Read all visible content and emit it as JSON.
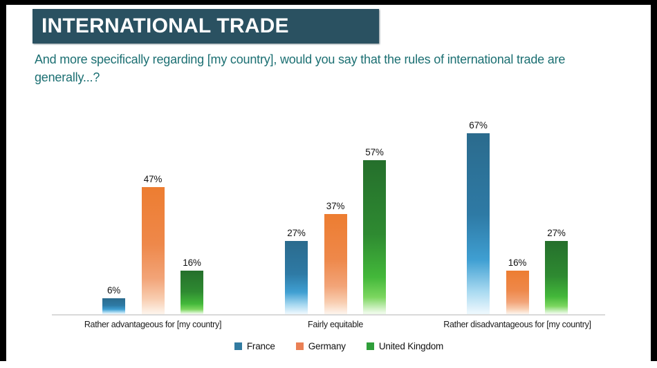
{
  "frame": {
    "color": "#000000"
  },
  "header": {
    "title": "INTERNATIONAL TRADE",
    "bg_color": "#2a5161",
    "text_color": "#ffffff"
  },
  "subtitle": {
    "text": "And more specifically regarding [my country], would you say that the rules of international trade are generally...?",
    "color": "#1b6f72"
  },
  "chart_data": {
    "type": "bar",
    "title": "",
    "xlabel": "",
    "ylabel": "",
    "categories": [
      "Rather advantageous for [my country]",
      "Fairly equitable",
      "Rather disadvantageous for [my country]"
    ],
    "series": [
      {
        "name": "France",
        "values": [
          6,
          27,
          67
        ],
        "legend_color": "#327ba1",
        "gradient_stops": [
          [
            "#2b6b8d",
            0
          ],
          [
            "#2e7aa5",
            45
          ],
          [
            "#3f9fd2",
            70
          ],
          [
            "#a6d8f0",
            87
          ],
          [
            "#ebf7fd",
            99
          ]
        ]
      },
      {
        "name": "Germany",
        "values": [
          47,
          37,
          16
        ],
        "legend_color": "#ea8055",
        "gradient_stops": [
          [
            "#ed7d31",
            0
          ],
          [
            "#ee884a",
            45
          ],
          [
            "#f2a478",
            72
          ],
          [
            "#f8cdb0",
            88
          ],
          [
            "#fdf2e9",
            99
          ]
        ]
      },
      {
        "name": "United Kingdom",
        "values": [
          16,
          57,
          27
        ],
        "legend_color": "#2f9e3a",
        "gradient_stops": [
          [
            "#256f2c",
            0
          ],
          [
            "#2e8a31",
            48
          ],
          [
            "#43b83a",
            76
          ],
          [
            "#7cd65f",
            89
          ],
          [
            "#ecfae7",
            99
          ]
        ]
      }
    ],
    "value_suffix": "%",
    "data_labels": true,
    "ylim": [
      0,
      72
    ],
    "grid": false,
    "legend_position": "bottom",
    "axis_line_color": "#d9d9d9"
  }
}
